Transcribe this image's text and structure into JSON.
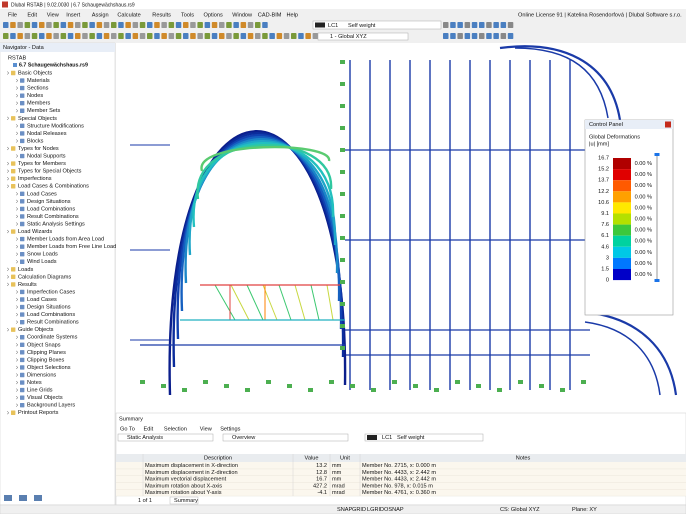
{
  "title_bar": "Dlubal RSTAB | 9.02.0030 | 6.7 Schaugewächshaus.rs9",
  "menu": [
    "File",
    "Edit",
    "View",
    "Insert",
    "Assign",
    "Calculate",
    "Results",
    "Tools",
    "Options",
    "Window",
    "CAD-BIM",
    "Help"
  ],
  "license": "Online License 91 | Katelina Rosendorfová | Dlubal Software s.r.o.",
  "toolbar": {
    "load_case": "LC1",
    "load_case_name": "Self weight",
    "coordinate_system": "1 - Global XYZ"
  },
  "navigator": {
    "title": "Navigator - Data",
    "root": "RSTAB",
    "file": "6.7 Schaugewächshaus.rs9",
    "items": [
      {
        "label": "Basic Objects",
        "level": 0
      },
      {
        "label": "Materials",
        "level": 1
      },
      {
        "label": "Sections",
        "level": 1
      },
      {
        "label": "Nodes",
        "level": 1
      },
      {
        "label": "Members",
        "level": 1
      },
      {
        "label": "Member Sets",
        "level": 1
      },
      {
        "label": "Special Objects",
        "level": 0
      },
      {
        "label": "Structure Modifications",
        "level": 1
      },
      {
        "label": "Nodal Releases",
        "level": 1
      },
      {
        "label": "Blocks",
        "level": 1
      },
      {
        "label": "Types for Nodes",
        "level": 0
      },
      {
        "label": "Nodal Supports",
        "level": 1
      },
      {
        "label": "Types for Members",
        "level": 0
      },
      {
        "label": "Types for Special Objects",
        "level": 0
      },
      {
        "label": "Imperfections",
        "level": 0
      },
      {
        "label": "Load Cases & Combinations",
        "level": 0
      },
      {
        "label": "Load Cases",
        "level": 1
      },
      {
        "label": "Design Situations",
        "level": 1
      },
      {
        "label": "Load Combinations",
        "level": 1
      },
      {
        "label": "Result Combinations",
        "level": 1
      },
      {
        "label": "Static Analysis Settings",
        "level": 1
      },
      {
        "label": "Load Wizards",
        "level": 0
      },
      {
        "label": "Member Loads from Area Load",
        "level": 1
      },
      {
        "label": "Member Loads from Free Line Load",
        "level": 1
      },
      {
        "label": "Snow Loads",
        "level": 1
      },
      {
        "label": "Wind Loads",
        "level": 1
      },
      {
        "label": "Loads",
        "level": 0
      },
      {
        "label": "Calculation Diagrams",
        "level": 0
      },
      {
        "label": "Results",
        "level": 0
      },
      {
        "label": "Imperfection Cases",
        "level": 1
      },
      {
        "label": "Load Cases",
        "level": 1
      },
      {
        "label": "Design Situations",
        "level": 1
      },
      {
        "label": "Load Combinations",
        "level": 1
      },
      {
        "label": "Result Combinations",
        "level": 1
      },
      {
        "label": "Guide Objects",
        "level": 0
      },
      {
        "label": "Coordinate Systems",
        "level": 1
      },
      {
        "label": "Object Snaps",
        "level": 1
      },
      {
        "label": "Clipping Planes",
        "level": 1
      },
      {
        "label": "Clipping Boxes",
        "level": 1
      },
      {
        "label": "Object Selections",
        "level": 1
      },
      {
        "label": "Dimensions",
        "level": 1
      },
      {
        "label": "Notes",
        "level": 1
      },
      {
        "label": "Line Grids",
        "level": 1
      },
      {
        "label": "Visual Objects",
        "level": 1
      },
      {
        "label": "Background Layers",
        "level": 1
      },
      {
        "label": "Printout Reports",
        "level": 0
      }
    ]
  },
  "control_panel": {
    "title": "Control Panel",
    "heading": "Global Deformations",
    "unit": "|u| [mm]",
    "scale": [
      16.7,
      15.2,
      13.7,
      12.2,
      10.6,
      9.1,
      7.6,
      6.1,
      4.6,
      3.0,
      1.5,
      0.0
    ],
    "colors": [
      "#b00000",
      "#e00000",
      "#ff5a00",
      "#ffa000",
      "#ffe800",
      "#b4e000",
      "#3cc83c",
      "#00d2a0",
      "#00c8e6",
      "#0078ff",
      "#0000c8"
    ],
    "shares": [
      "0.00 %",
      "0.00 %",
      "0.00 %",
      "0.00 %",
      "0.00 %",
      "0.00 %",
      "0.00 %",
      "0.00 %",
      "0.00 %",
      "0.00 %",
      "0.00 %"
    ]
  },
  "summary": {
    "title": "Summary",
    "menu": [
      "Go To",
      "Edit",
      "Selection",
      "View",
      "Settings"
    ],
    "analysis": "Static Analysis",
    "view": "Overview",
    "load_case": "LC1",
    "load_case_name": "Self weight",
    "columns": [
      "Description",
      "Value",
      "Unit",
      "Notes"
    ],
    "rows": [
      [
        "Maximum displacement in X-direction",
        13.2,
        "mm",
        "Member No. 2715, x: 0.000 m"
      ],
      [
        "Maximum displacement in Z-direction",
        12.8,
        "mm",
        "Member No. 4433, x: 2.442 m"
      ],
      [
        "Maximum vectorial displacement",
        16.7,
        "mm",
        "Member No. 4433, x: 2.442 m"
      ],
      [
        "Maximum rotation about X-axis",
        427.2,
        "mrad",
        "Member No. 978, x: 0.015 m"
      ],
      [
        "Maximum rotation about Y-axis",
        -4.1,
        "mrad",
        "Member No. 4761, x: 0.360 m"
      ]
    ],
    "pager": "1 of 1",
    "tab": "Summary"
  },
  "status_bar": {
    "toggles": [
      "SNAP",
      "GRID",
      "LGRID",
      "OSNAP"
    ],
    "cs": "CS: Global XYZ",
    "plane": "Plane: XY"
  }
}
